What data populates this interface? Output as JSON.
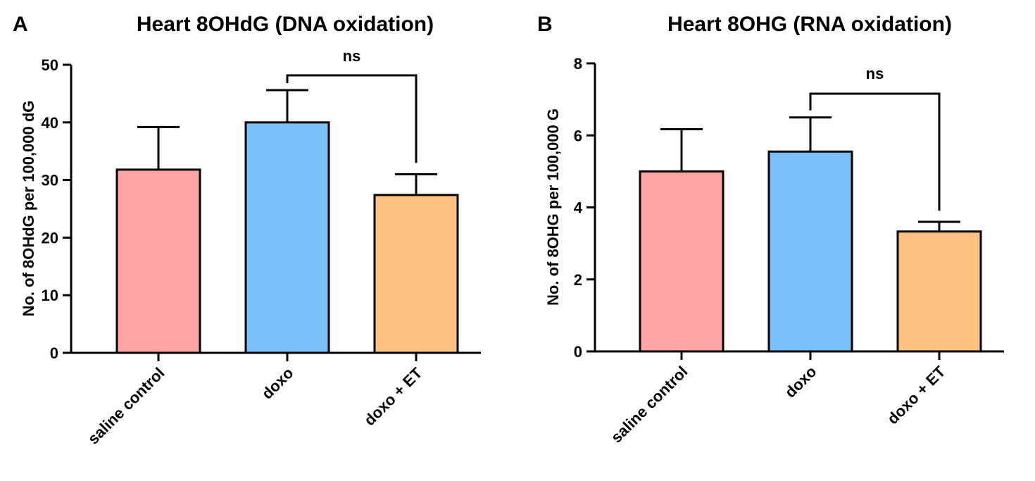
{
  "chart_data": [
    {
      "type": "bar",
      "panel": "A",
      "title": "Heart 8OHdG (DNA oxidation)",
      "xlabel": "",
      "ylabel": "No. of 8OHdG per 100,000 dG",
      "ylim": [
        0,
        50
      ],
      "yticks": [
        0,
        10,
        20,
        30,
        40,
        50
      ],
      "categories": [
        "saline control",
        "doxo",
        "doxo + ET"
      ],
      "values": [
        31.8,
        40.0,
        27.4
      ],
      "errors": [
        7.4,
        5.6,
        3.6
      ],
      "colors": [
        "#FFA3A3",
        "#7BBFFB",
        "#FEC17F"
      ],
      "significance": {
        "from": 1,
        "to": 2,
        "label": "ns"
      }
    },
    {
      "type": "bar",
      "panel": "B",
      "title": "Heart 8OHG (RNA oxidation)",
      "xlabel": "",
      "ylabel": "No. of 8OHG per 100,000 G",
      "ylim": [
        0,
        8
      ],
      "yticks": [
        0,
        2,
        4,
        6,
        8
      ],
      "categories": [
        "saline control",
        "doxo",
        "doxo + ET"
      ],
      "values": [
        5.0,
        5.55,
        3.33
      ],
      "errors": [
        1.17,
        0.95,
        0.27
      ],
      "colors": [
        "#FFA3A3",
        "#7BBFFB",
        "#FEC17F"
      ],
      "significance": {
        "from": 1,
        "to": 2,
        "label": "ns"
      }
    }
  ]
}
